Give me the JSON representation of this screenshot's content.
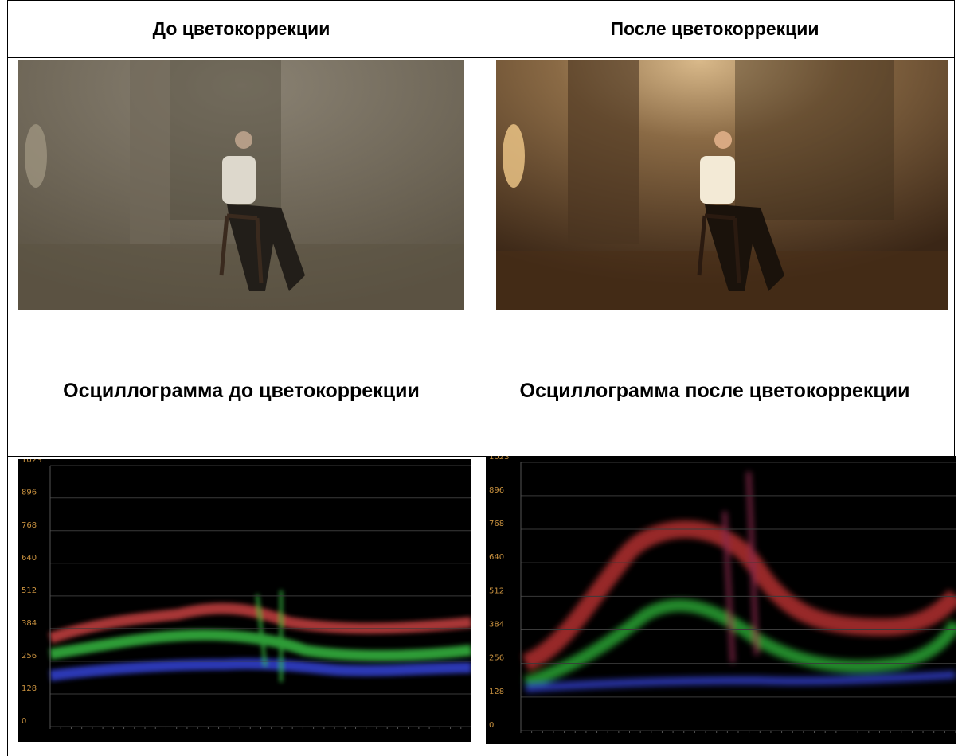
{
  "table": {
    "rows": [
      [
        "До цветокоррекции",
        "После цветокоррекции"
      ],
      [
        "Осциллограмма до цветокоррекции",
        "Осциллограмма после цветокоррекции"
      ]
    ]
  },
  "waveform": {
    "scale": [
      1023,
      896,
      768,
      640,
      512,
      384,
      256,
      128,
      0
    ]
  }
}
